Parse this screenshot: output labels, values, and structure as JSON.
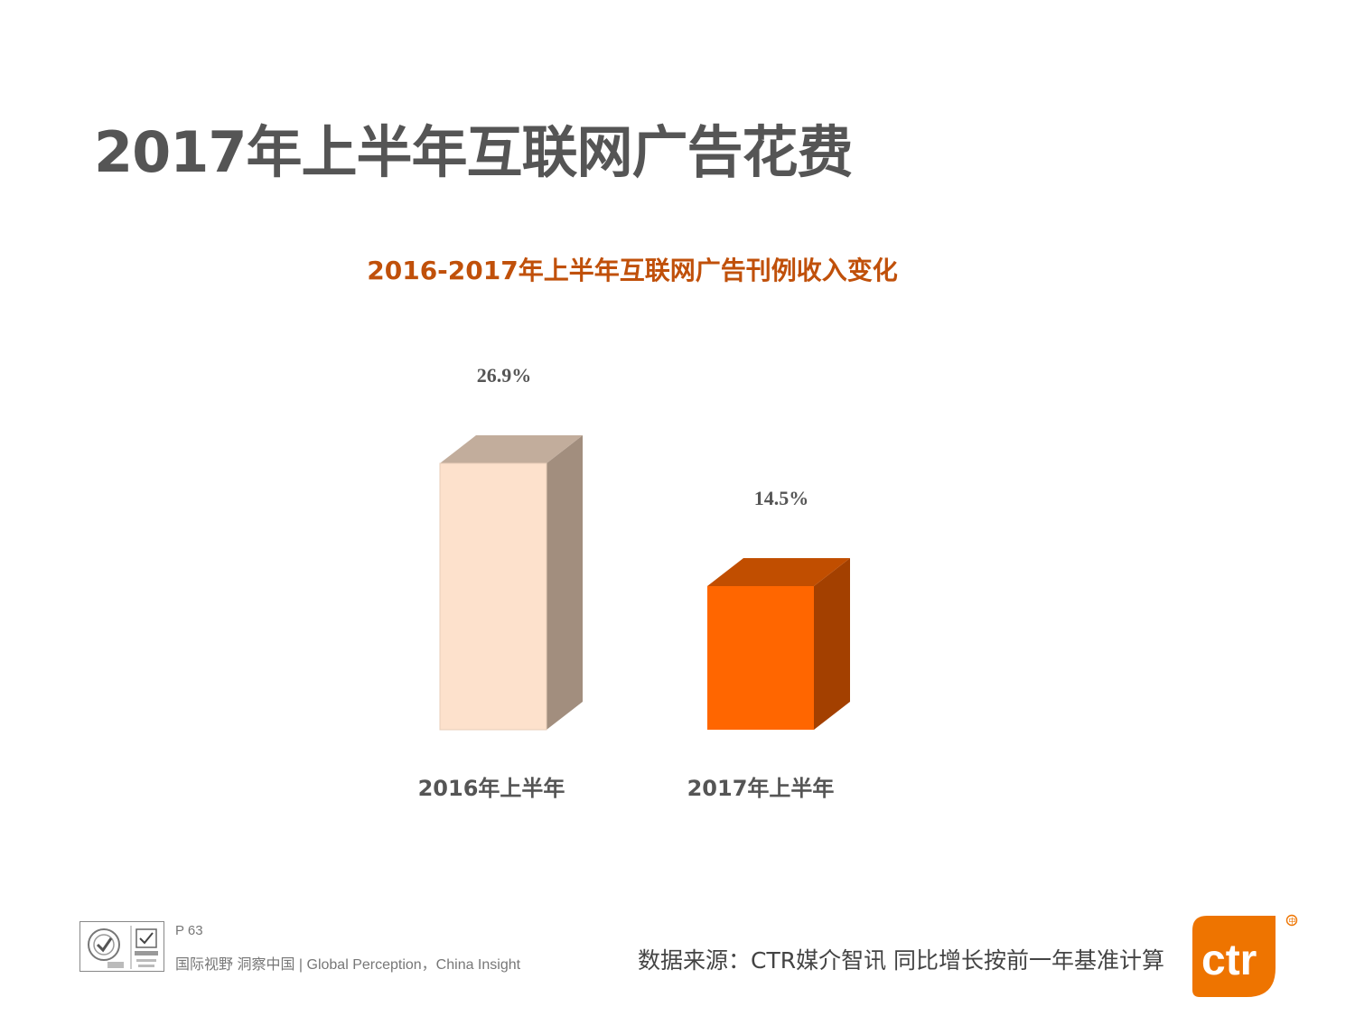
{
  "page": {
    "title": "2017年上半年互联网广告花费"
  },
  "chart_data": {
    "type": "bar",
    "title": "2016-2017年上半年互联网广告刊例收入变化",
    "categories": [
      "2016年上半年",
      "2017年上半年"
    ],
    "values": [
      26.9,
      14.5
    ],
    "value_labels": [
      "26.9%",
      "14.5%"
    ],
    "ylim": [
      0,
      30
    ],
    "grid": false,
    "legend": "none",
    "colors": {
      "bar1_front": "#fde1cc",
      "bar1_side": "#a28e7e",
      "bar1_top": "#c2ad9c",
      "bar2_front": "#ff6600",
      "bar2_side": "#a34000",
      "bar2_top": "#c14e00"
    }
  },
  "footer": {
    "page_number": "P 63",
    "tagline": "国际视野  洞察中国 |  Global Perception，China Insight",
    "source": "数据来源：CTR媒介智讯   同比增长按前一年基准计算",
    "logo_text": "ctr",
    "certification_icons": [
      "iso-certification-icon",
      "ukas-certification-icon"
    ]
  }
}
